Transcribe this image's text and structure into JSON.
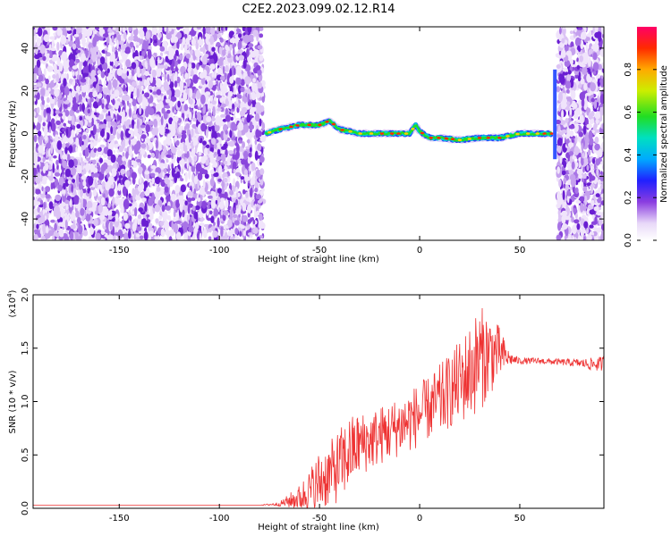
{
  "title": "C2E2.2023.099.02.12.R14",
  "chart_data": [
    {
      "type": "heatmap",
      "xlabel": "Height of straight line (km)",
      "ylabel": "Frequency (Hz)",
      "xlim": [
        -193,
        92
      ],
      "ylim": [
        -50,
        50
      ],
      "xticks": [
        -150,
        -100,
        -50,
        0,
        50
      ],
      "yticks": [
        -40,
        -20,
        0,
        20,
        40
      ],
      "noise_regions_km": [
        [
          -193,
          -78
        ],
        [
          69,
          92
        ]
      ],
      "ridge": {
        "x": [
          -77,
          -70,
          -60,
          -50,
          -45,
          -40,
          -30,
          -20,
          -10,
          -5,
          -2,
          0,
          5,
          10,
          20,
          30,
          40,
          50,
          60,
          66
        ],
        "y": [
          0,
          2,
          4,
          4,
          6,
          2,
          0,
          0,
          0,
          0,
          4,
          1,
          -2,
          -2,
          -3,
          -2,
          -2,
          0,
          0,
          0
        ]
      },
      "colorbar": {
        "label": "Normalized spectral amplitude",
        "range": [
          0.0,
          1.0
        ],
        "ticks": [
          "0.0",
          "0.2",
          "0.4",
          "0.6",
          "0.8"
        ]
      }
    },
    {
      "type": "line",
      "xlabel": "Height of straight line (km)",
      "ylabel": "SNR (10 * v/v)",
      "multiplier_label": "(x10",
      "multiplier_exp": "4",
      "xlim": [
        -193,
        92
      ],
      "ylim": [
        0,
        20000
      ],
      "xticks": [
        -150,
        -100,
        -50,
        0,
        50
      ],
      "yticks": [
        "0.0",
        "0.5",
        "1.0",
        "1.5",
        "2.0"
      ],
      "color": "#ee3333",
      "envelope": {
        "x": [
          -193,
          -80,
          -70,
          -60,
          -55,
          -50,
          -45,
          -40,
          -35,
          -30,
          -25,
          -20,
          -15,
          -10,
          -5,
          0,
          5,
          10,
          15,
          20,
          25,
          30,
          35,
          40,
          45,
          50,
          60,
          70,
          80,
          86,
          90,
          92
        ],
        "mean": [
          300,
          300,
          400,
          1000,
          1500,
          2500,
          3200,
          4000,
          5200,
          6000,
          6300,
          6800,
          7200,
          7700,
          8200,
          8800,
          9400,
          10000,
          11000,
          11800,
          12800,
          14000,
          14500,
          14500,
          14000,
          13800,
          13800,
          13700,
          13600,
          13500,
          13500,
          13600
        ],
        "amplitude": [
          0,
          0,
          200,
          1200,
          2200,
          3000,
          3000,
          3500,
          3500,
          3000,
          2800,
          2800,
          2800,
          2800,
          3000,
          3000,
          3000,
          3500,
          3500,
          4000,
          4500,
          5000,
          4000,
          2500,
          600,
          300,
          300,
          300,
          400,
          600,
          700,
          700
        ]
      }
    }
  ]
}
